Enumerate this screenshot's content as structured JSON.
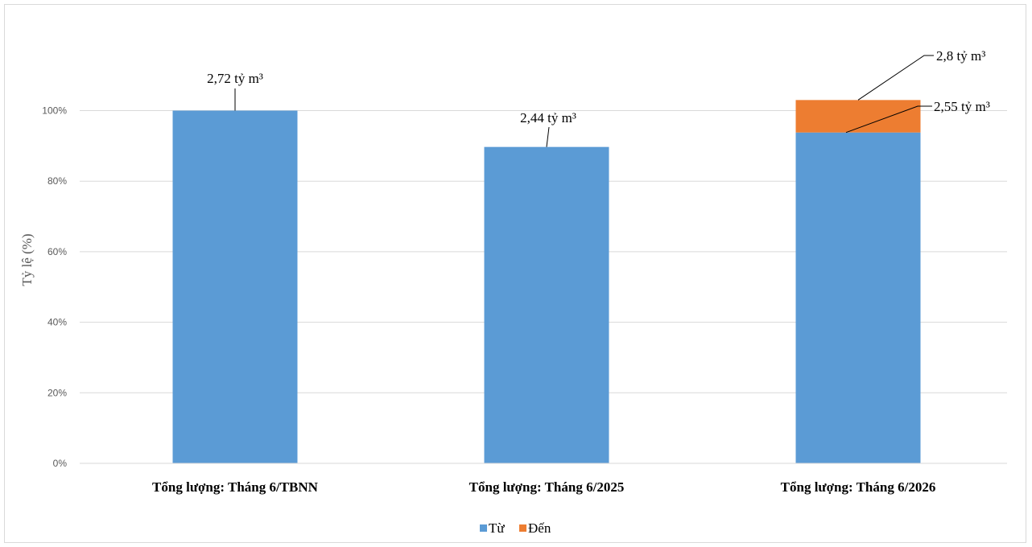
{
  "chart_data": {
    "type": "bar",
    "stacked": true,
    "title": "",
    "xlabel": "",
    "ylabel": "Tỷ lệ (%)",
    "ylim": [
      0,
      100
    ],
    "yticks": [
      "0%",
      "20%",
      "40%",
      "60%",
      "80%",
      "100%"
    ],
    "categories": [
      "Tổng lượng: Tháng 6/TBNN",
      "Tổng lượng: Tháng 6/2025",
      "Tổng lượng: Tháng 6/2026"
    ],
    "series": [
      {
        "name": "Từ",
        "color": "#5b9bd5",
        "values": [
          100,
          89.7,
          93.8
        ]
      },
      {
        "name": "Đến",
        "color": "#ed7d31",
        "values": [
          0,
          0,
          9.2
        ]
      }
    ],
    "data_labels": [
      "2,72 tỷ m³",
      "2,44 tỷ m³",
      "2,55 tỷ m³",
      "2,8 tỷ m³"
    ],
    "legend_position": "bottom",
    "grid": true
  }
}
